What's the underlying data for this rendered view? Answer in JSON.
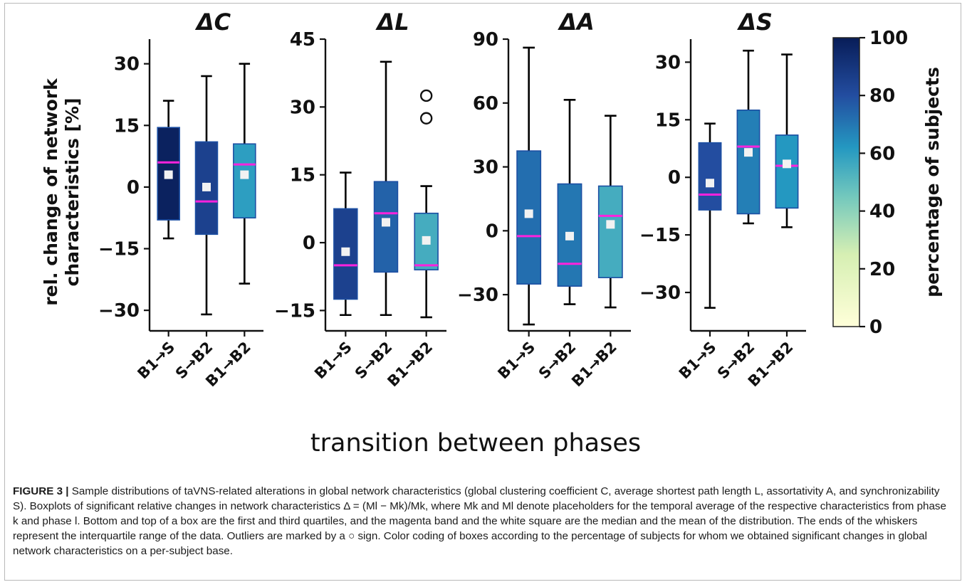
{
  "chart_data": [
    {
      "type": "box",
      "title": "ΔC",
      "ylabel": "rel. change of network characteristics [%]",
      "ylim": [
        -35,
        36
      ],
      "yticks": [
        -30,
        -15,
        0,
        15,
        30
      ],
      "ytick_labels": [
        "−30",
        "−15",
        "0",
        "15",
        "30"
      ],
      "categories": [
        "B1→S",
        "S→B2",
        "B1→B2"
      ],
      "boxes": [
        {
          "whisker_low": -12.5,
          "q1": -8,
          "median": 6,
          "q3": 14.5,
          "whisker_high": 21,
          "mean": 3,
          "pct_subjects": 98
        },
        {
          "whisker_low": -31,
          "q1": -11.5,
          "median": -3.5,
          "q3": 11,
          "whisker_high": 27,
          "mean": 0,
          "pct_subjects": 85
        },
        {
          "whisker_low": -23.5,
          "q1": -7.5,
          "median": 5.5,
          "q3": 10.5,
          "whisker_high": 30,
          "mean": 3,
          "pct_subjects": 60
        }
      ],
      "outliers": []
    },
    {
      "type": "box",
      "title": "ΔL",
      "ylim": [
        -19.5,
        45
      ],
      "yticks": [
        -15,
        0,
        15,
        30,
        45
      ],
      "ytick_labels": [
        "−15",
        "0",
        "15",
        "30",
        "45"
      ],
      "categories": [
        "B1→S",
        "S→B2",
        "B1→B2"
      ],
      "boxes": [
        {
          "whisker_low": -16,
          "q1": -12.5,
          "median": -5,
          "q3": 7.5,
          "whisker_high": 15.5,
          "mean": -2,
          "pct_subjects": 85
        },
        {
          "whisker_low": -16,
          "q1": -6.5,
          "median": 6.5,
          "q3": 13.5,
          "whisker_high": 40,
          "mean": 4.5,
          "pct_subjects": 75
        },
        {
          "whisker_low": -16.5,
          "q1": -6,
          "median": -5,
          "q3": 6.5,
          "whisker_high": 12.5,
          "mean": 0.5,
          "pct_subjects": 55
        }
      ],
      "outliers": [
        {
          "category": "B1→B2",
          "value": 27.5
        },
        {
          "category": "B1→B2",
          "value": 32.5
        }
      ]
    },
    {
      "type": "box",
      "title": "ΔA",
      "ylim": [
        -47,
        90
      ],
      "yticks": [
        -30,
        0,
        30,
        60,
        90
      ],
      "ytick_labels": [
        "−30",
        "0",
        "30",
        "60",
        "90"
      ],
      "categories": [
        "B1→S",
        "S→B2",
        "B1→B2"
      ],
      "boxes": [
        {
          "whisker_low": -44,
          "q1": -25,
          "median": -2.5,
          "q3": 37.5,
          "whisker_high": 86,
          "mean": 8,
          "pct_subjects": 72
        },
        {
          "whisker_low": -34.5,
          "q1": -26,
          "median": -15.5,
          "q3": 22,
          "whisker_high": 61.5,
          "mean": -2.5,
          "pct_subjects": 70
        },
        {
          "whisker_low": -36,
          "q1": -22,
          "median": 7,
          "q3": 21,
          "whisker_high": 54,
          "mean": 3,
          "pct_subjects": 55
        }
      ],
      "outliers": []
    },
    {
      "type": "box",
      "title": "ΔS",
      "ylim": [
        -40,
        36
      ],
      "yticks": [
        -30,
        -15,
        0,
        15,
        30
      ],
      "ytick_labels": [
        "−30",
        "−15",
        "0",
        "15",
        "30"
      ],
      "categories": [
        "B1→S",
        "S→B2",
        "B1→B2"
      ],
      "boxes": [
        {
          "whisker_low": -34,
          "q1": -8.5,
          "median": -4.5,
          "q3": 9,
          "whisker_high": 14,
          "mean": -1.5,
          "pct_subjects": 80
        },
        {
          "whisker_low": -12,
          "q1": -9.5,
          "median": 8,
          "q3": 17.5,
          "whisker_high": 33,
          "mean": 6.5,
          "pct_subjects": 68
        },
        {
          "whisker_low": -13,
          "q1": -8,
          "median": 3,
          "q3": 11,
          "whisker_high": 32,
          "mean": 3.5,
          "pct_subjects": 62
        }
      ],
      "outliers": []
    }
  ],
  "colorbar": {
    "label": "percentage of subjects",
    "range": [
      0,
      100
    ],
    "ticks": [
      "0",
      "20",
      "40",
      "60",
      "80",
      "100"
    ]
  },
  "x_axis_title": "transition between phases",
  "colors": {
    "median": "#ff22dd",
    "mean_marker": "#f2f2f2",
    "box_edge": "#1c4fa3",
    "whisker": "#000000"
  },
  "caption": {
    "label": "FIGURE 3 |",
    "text": " Sample distributions of taVNS-related alterations in global network characteristics (global clustering coefficient C, average shortest path length L, assortativity A, and synchronizability S). Boxplots of significant relative changes in network characteristics Δ = (Ml − Mk)/Mk, where Mk and Ml denote placeholders for the temporal average of the respective characteristics from phase k and phase l. Bottom and top of a box are the first and third quartiles, and the magenta band and the white square are the median and the mean of the distribution. The ends of the whiskers represent the interquartile range of the data. Outliers are marked by a ○ sign. Color coding of boxes according to the percentage of subjects for whom we obtained significant changes in global network characteristics on a per-subject base."
  }
}
